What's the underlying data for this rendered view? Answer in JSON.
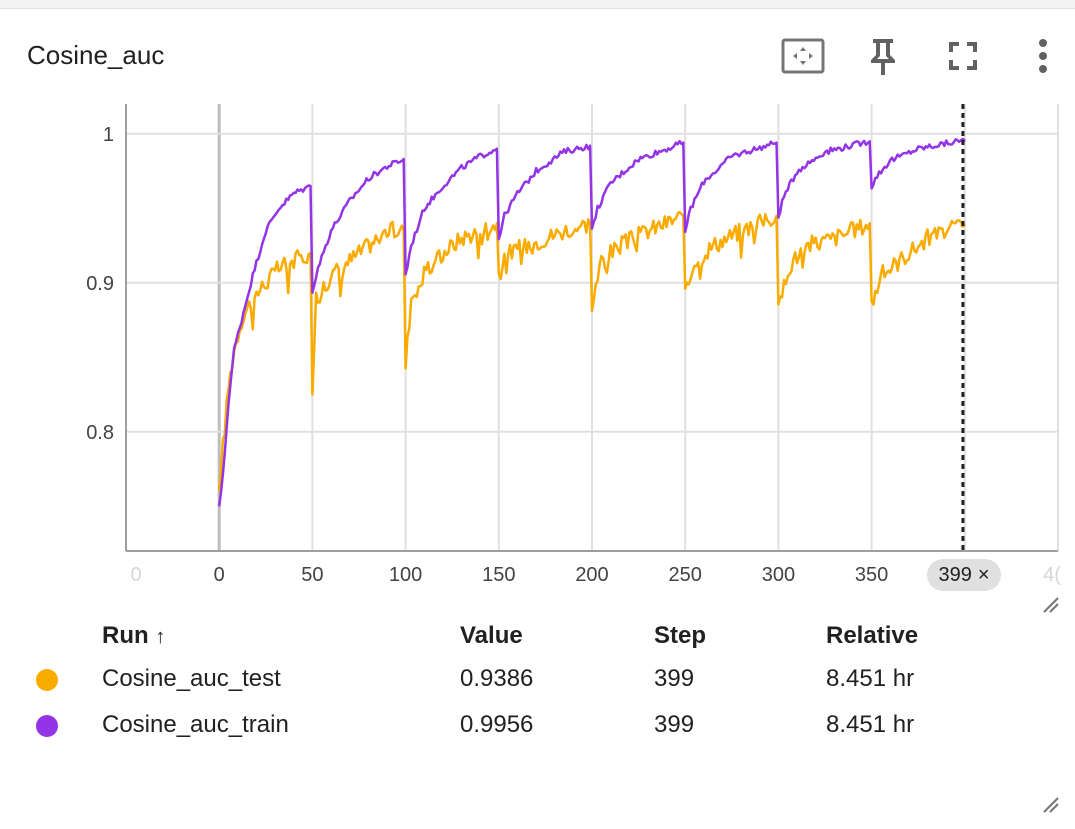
{
  "card": {
    "title": "Cosine_auc",
    "tools": [
      "fit-domain-icon",
      "pin-icon",
      "fullscreen-icon",
      "more-vert-icon"
    ]
  },
  "chart_data": {
    "type": "line",
    "title": "Cosine_auc",
    "xlabel": "",
    "ylabel": "",
    "xlim": [
      -50,
      450
    ],
    "ylim": [
      0.72,
      1.02
    ],
    "x_ticks": [
      0,
      50,
      100,
      150,
      200,
      250,
      300,
      350
    ],
    "x_tick_labels": [
      "0",
      "50",
      "100",
      "150",
      "200",
      "250",
      "300",
      "350"
    ],
    "x_edge_labels": [
      "0",
      "4("
    ],
    "y_ticks": [
      0.8,
      0.9,
      1.0
    ],
    "y_tick_labels": [
      "0.8",
      "0.9",
      "1"
    ],
    "grid": true,
    "hover_step": 399,
    "series": [
      {
        "name": "Cosine_auc_test",
        "color": "#f9ab00",
        "points": [
          [
            0,
            0.76
          ],
          [
            2,
            0.79
          ],
          [
            5,
            0.83
          ],
          [
            8,
            0.855
          ],
          [
            12,
            0.875
          ],
          [
            18,
            0.89
          ],
          [
            25,
            0.9
          ],
          [
            32,
            0.91
          ],
          [
            40,
            0.915
          ],
          [
            49,
            0.92
          ],
          [
            50,
            0.825
          ],
          [
            52,
            0.89
          ],
          [
            60,
            0.905
          ],
          [
            70,
            0.915
          ],
          [
            80,
            0.925
          ],
          [
            90,
            0.935
          ],
          [
            99,
            0.935
          ],
          [
            100,
            0.845
          ],
          [
            103,
            0.89
          ],
          [
            110,
            0.905
          ],
          [
            120,
            0.92
          ],
          [
            130,
            0.93
          ],
          [
            140,
            0.935
          ],
          [
            149,
            0.94
          ],
          [
            150,
            0.905
          ],
          [
            155,
            0.92
          ],
          [
            165,
            0.925
          ],
          [
            175,
            0.93
          ],
          [
            185,
            0.935
          ],
          [
            199,
            0.94
          ],
          [
            200,
            0.885
          ],
          [
            205,
            0.915
          ],
          [
            215,
            0.925
          ],
          [
            230,
            0.935
          ],
          [
            249,
            0.945
          ],
          [
            250,
            0.89
          ],
          [
            255,
            0.915
          ],
          [
            265,
            0.925
          ],
          [
            280,
            0.935
          ],
          [
            299,
            0.945
          ],
          [
            300,
            0.88
          ],
          [
            305,
            0.91
          ],
          [
            315,
            0.925
          ],
          [
            330,
            0.93
          ],
          [
            349,
            0.94
          ],
          [
            350,
            0.885
          ],
          [
            355,
            0.905
          ],
          [
            365,
            0.915
          ],
          [
            380,
            0.93
          ],
          [
            399,
            0.9386
          ]
        ]
      },
      {
        "name": "Cosine_auc_train",
        "color": "#9334e6",
        "points": [
          [
            0,
            0.75
          ],
          [
            2,
            0.77
          ],
          [
            5,
            0.82
          ],
          [
            8,
            0.855
          ],
          [
            12,
            0.875
          ],
          [
            18,
            0.905
          ],
          [
            25,
            0.935
          ],
          [
            32,
            0.95
          ],
          [
            40,
            0.96
          ],
          [
            49,
            0.965
          ],
          [
            50,
            0.895
          ],
          [
            53,
            0.91
          ],
          [
            60,
            0.935
          ],
          [
            70,
            0.955
          ],
          [
            80,
            0.97
          ],
          [
            90,
            0.978
          ],
          [
            99,
            0.983
          ],
          [
            100,
            0.905
          ],
          [
            103,
            0.925
          ],
          [
            110,
            0.95
          ],
          [
            120,
            0.965
          ],
          [
            130,
            0.977
          ],
          [
            140,
            0.985
          ],
          [
            149,
            0.99
          ],
          [
            150,
            0.93
          ],
          [
            153,
            0.945
          ],
          [
            160,
            0.96
          ],
          [
            170,
            0.975
          ],
          [
            185,
            0.988
          ],
          [
            199,
            0.992
          ],
          [
            200,
            0.935
          ],
          [
            203,
            0.95
          ],
          [
            210,
            0.967
          ],
          [
            225,
            0.983
          ],
          [
            249,
            0.994
          ],
          [
            250,
            0.935
          ],
          [
            253,
            0.95
          ],
          [
            260,
            0.968
          ],
          [
            275,
            0.985
          ],
          [
            299,
            0.994
          ],
          [
            300,
            0.945
          ],
          [
            303,
            0.958
          ],
          [
            310,
            0.975
          ],
          [
            325,
            0.988
          ],
          [
            349,
            0.995
          ],
          [
            350,
            0.965
          ],
          [
            353,
            0.972
          ],
          [
            360,
            0.982
          ],
          [
            375,
            0.99
          ],
          [
            399,
            0.9956
          ]
        ]
      }
    ]
  },
  "table": {
    "headers": {
      "run": "Run",
      "sort_arrow": "↑",
      "value": "Value",
      "step": "Step",
      "relative": "Relative"
    },
    "rows": [
      {
        "run": "Cosine_auc_test",
        "value": "0.9386",
        "step": "399",
        "relative": "8.451 hr",
        "color": "#f9ab00"
      },
      {
        "run": "Cosine_auc_train",
        "value": "0.9956",
        "step": "399",
        "relative": "8.451 hr",
        "color": "#9334e6"
      }
    ]
  },
  "chip": {
    "step": "399",
    "close": "×"
  }
}
